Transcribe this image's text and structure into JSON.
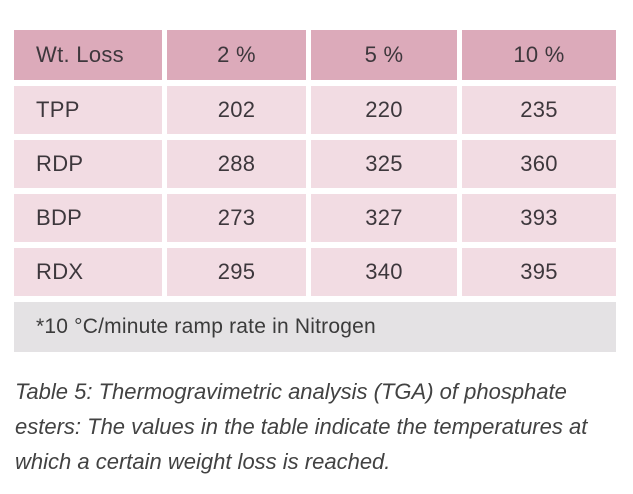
{
  "chart_data": {
    "type": "table",
    "columns": [
      "Wt. Loss",
      "2 %",
      "5 %",
      "10 %"
    ],
    "rows": [
      {
        "label": "TPP",
        "values": [
          "202",
          "220",
          "235"
        ]
      },
      {
        "label": "RDP",
        "values": [
          "288",
          "325",
          "360"
        ]
      },
      {
        "label": "BDP",
        "values": [
          "273",
          "327",
          "393"
        ]
      },
      {
        "label": "RDX",
        "values": [
          "295",
          "340",
          "395"
        ]
      }
    ],
    "footnote": "*10 °C/minute ramp rate in Nitrogen"
  },
  "caption": "Table 5: Thermogravimetric analysis (TGA) of phosphate esters: The values in the table indicate the temperatures at which a certain weight loss is reached.",
  "colors": {
    "header_bg": "#dcaaba",
    "row_bg": "#f2dce3",
    "footnote_bg": "#e4e2e4",
    "table_text": "#3d373c",
    "caption_text": "#424242",
    "gap": "#ffffff"
  }
}
